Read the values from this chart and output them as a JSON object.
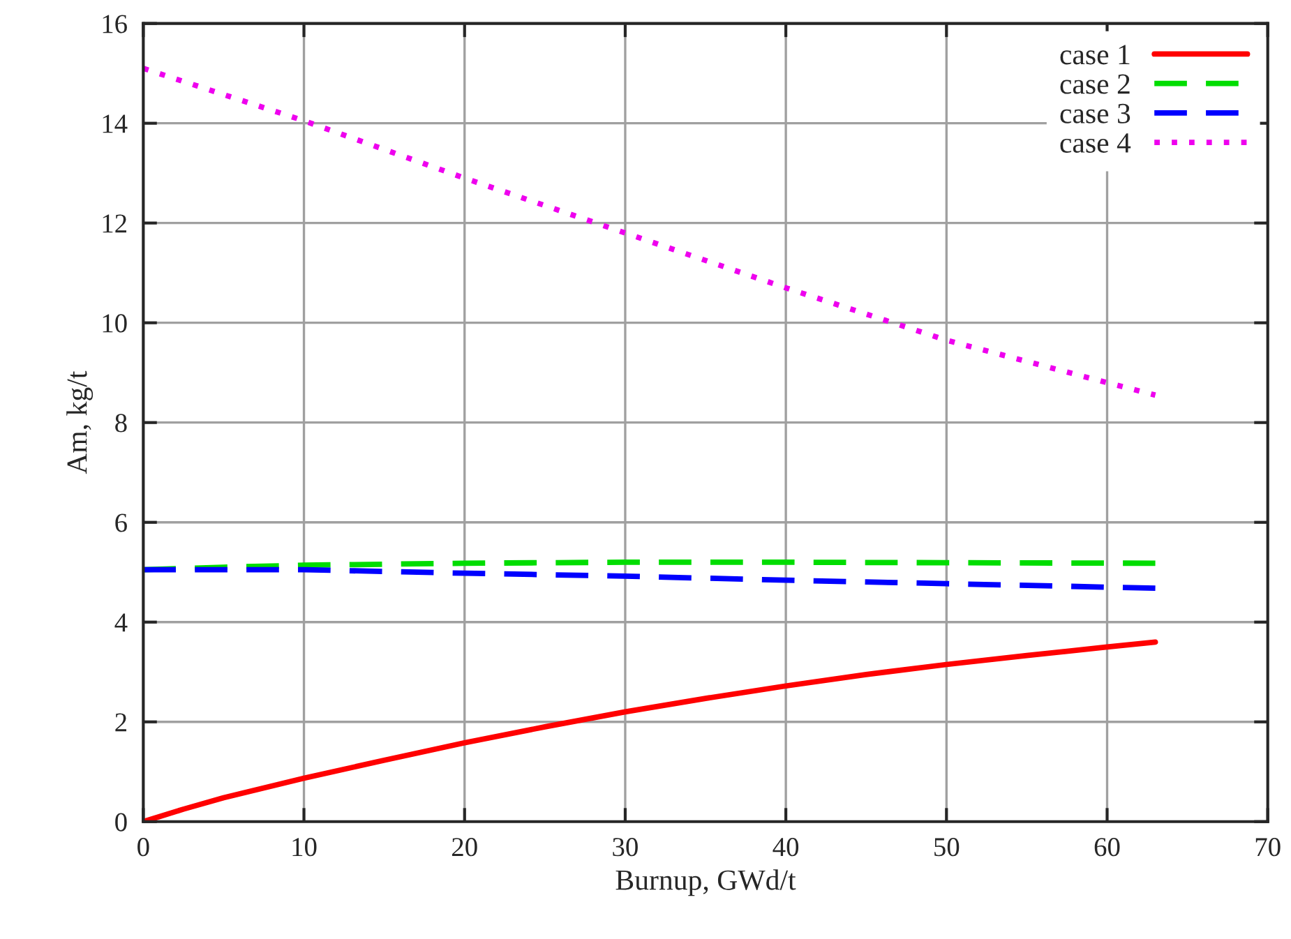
{
  "chart_data": {
    "type": "line",
    "xlabel": "Burnup, GWd/t",
    "ylabel": "Am, kg/t",
    "xlim": [
      0,
      70
    ],
    "xticks": [
      0,
      10,
      20,
      30,
      40,
      50,
      60,
      70
    ],
    "ylim": [
      0,
      16
    ],
    "yticks": [
      0,
      2,
      4,
      6,
      8,
      10,
      12,
      14,
      16
    ],
    "grid": true,
    "legend": "top right",
    "series": [
      {
        "name": "case 1",
        "color": "#ff0000",
        "line_style": "solid",
        "x": [
          0,
          2.5,
          5,
          10,
          15,
          20,
          25,
          30,
          35,
          40,
          45,
          50,
          55,
          60,
          63
        ],
        "values": [
          0,
          0.25,
          0.48,
          0.87,
          1.23,
          1.58,
          1.9,
          2.2,
          2.47,
          2.72,
          2.95,
          3.15,
          3.33,
          3.5,
          3.6
        ]
      },
      {
        "name": "case 2",
        "color": "#00dd00",
        "line_style": "dashed",
        "x": [
          0,
          5,
          10,
          20,
          30,
          40,
          50,
          63
        ],
        "values": [
          5.05,
          5.1,
          5.14,
          5.18,
          5.2,
          5.2,
          5.19,
          5.18
        ]
      },
      {
        "name": "case 3",
        "color": "#0000ff",
        "line_style": "dashed",
        "x": [
          0,
          10,
          20,
          30,
          40,
          50,
          63
        ],
        "values": [
          5.05,
          5.05,
          4.98,
          4.92,
          4.84,
          4.77,
          4.68
        ]
      },
      {
        "name": "case 4",
        "color": "#ee00ee",
        "line_style": "dotted",
        "x": [
          0,
          10,
          20,
          30,
          40,
          50,
          60,
          63
        ],
        "values": [
          15.1,
          14.05,
          12.9,
          11.8,
          10.7,
          9.65,
          8.8,
          8.55
        ]
      }
    ]
  }
}
